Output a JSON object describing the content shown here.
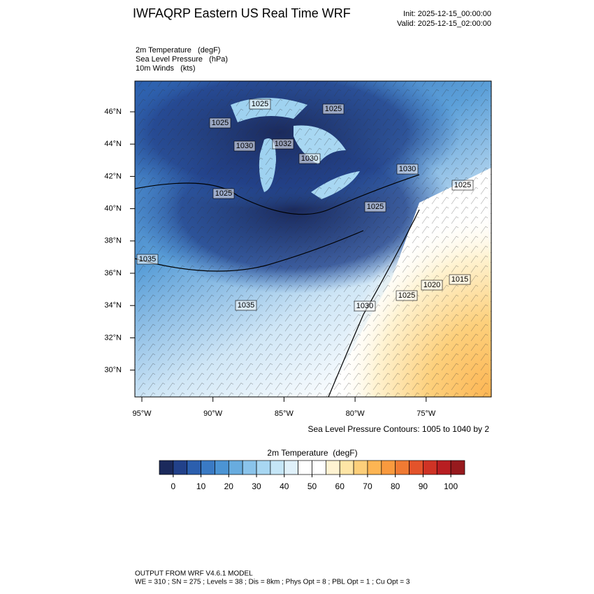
{
  "header": {
    "title": "IWFAQRP Eastern US Real Time WRF",
    "init": "Init: 2025-12-15_00:00:00",
    "valid": "Valid: 2025-12-15_02:00:00"
  },
  "fields": [
    "2m Temperature   (degF)",
    "Sea Level Pressure   (hPa)",
    "10m Winds   (kts)"
  ],
  "map": {
    "lat_labels": [
      "46°N",
      "44°N",
      "42°N",
      "40°N",
      "38°N",
      "36°N",
      "34°N",
      "32°N",
      "30°N"
    ],
    "lon_labels": [
      "95°W",
      "90°W",
      "85°W",
      "80°W",
      "75°W"
    ],
    "contour_labels": [
      "1025",
      "1025",
      "1025",
      "1030",
      "1030",
      "1025",
      "1025",
      "1030",
      "1025",
      "1020",
      "1015",
      "1035",
      "1035",
      "1030",
      "1025",
      "1032"
    ]
  },
  "contour_note": "Sea Level Pressure Contours: 1005 to 1040 by 2",
  "colorbar": {
    "title": "2m Temperature  (degF)",
    "range": [
      -5,
      105
    ],
    "colors": [
      "#1b2a5c",
      "#22418a",
      "#2c5fae",
      "#3a7ac4",
      "#4c94d4",
      "#68acdf",
      "#8ac4eb",
      "#a8d7f2",
      "#c5e6f7",
      "#e0f1fa",
      "#ffffff",
      "#ffffff",
      "#fff3d2",
      "#fee5a6",
      "#fdcf7a",
      "#fdb553",
      "#f99a3e",
      "#f07a33",
      "#e3532b",
      "#cf3325",
      "#b81e22",
      "#971a1e"
    ],
    "ticks": [
      0,
      10,
      20,
      30,
      40,
      50,
      60,
      70,
      80,
      90,
      100
    ]
  },
  "footer": [
    "OUTPUT FROM WRF V4.6.1 MODEL",
    "WE = 310 ; SN = 275 ; Levels = 38 ; Dis = 8km ; Phys Opt = 8 ; PBL Opt = 1 ; Cu Opt = 3"
  ]
}
